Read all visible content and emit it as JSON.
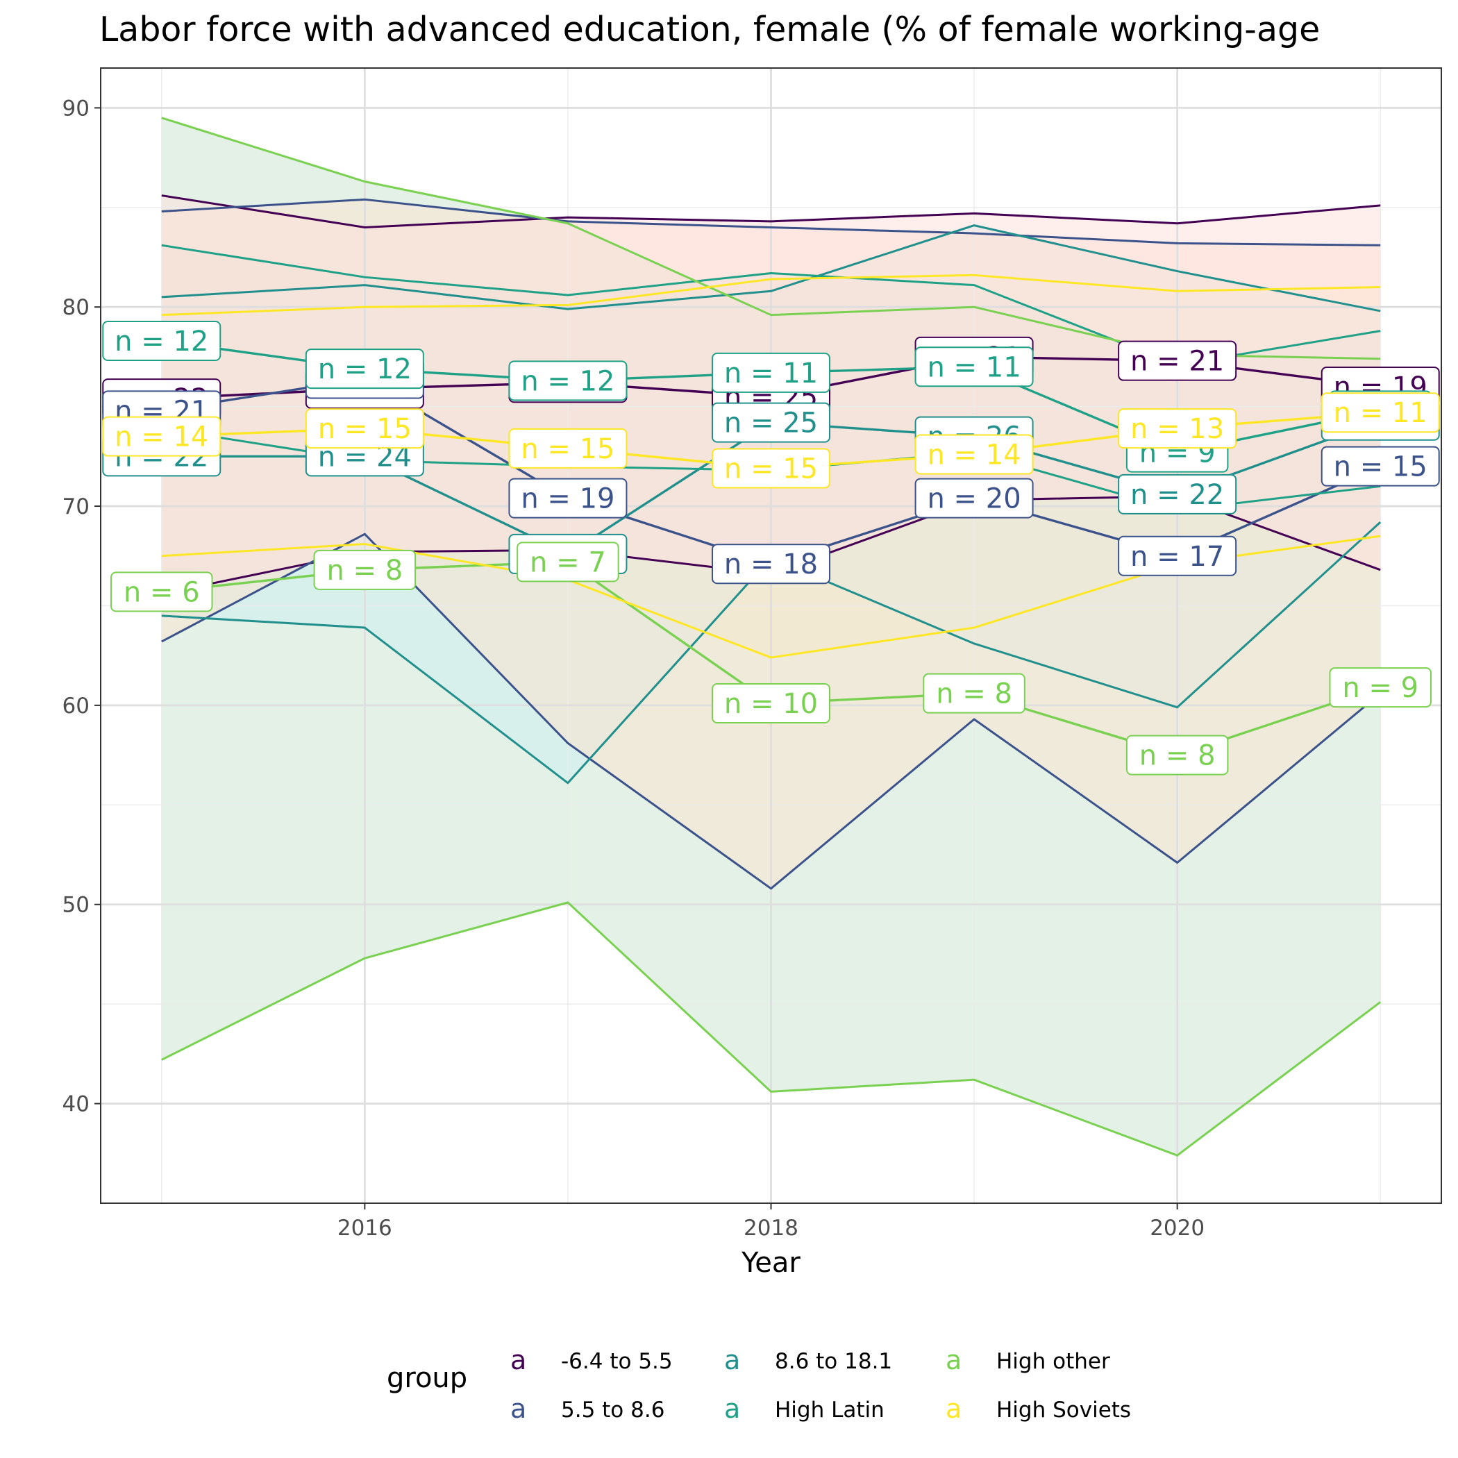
{
  "chart_data": {
    "type": "line",
    "title": "Labor force with advanced education, female (% of female working-age",
    "xlabel": "Year",
    "ylabel": "",
    "x": [
      2015,
      2016,
      2017,
      2018,
      2019,
      2020,
      2021
    ],
    "xlim": [
      2014.7,
      2021.3
    ],
    "ylim": [
      35,
      92
    ],
    "x_ticks": [
      2016,
      2018,
      2020
    ],
    "y_ticks": [
      40,
      50,
      60,
      70,
      80,
      90
    ],
    "grid": true,
    "legend": {
      "title": "group",
      "placement": "bottom",
      "key_glyph": "a",
      "entries": [
        "-6.4 to 5.5",
        "5.5 to 8.6",
        "8.6 to 18.1",
        "High Latin",
        "High other",
        "High Soviets"
      ]
    },
    "series": [
      {
        "name": "-6.4 to 5.5",
        "color": "#440154",
        "band_fill": "#fde0dd",
        "upper": [
          85.6,
          84.0,
          84.5,
          84.3,
          84.7,
          84.2,
          85.1
        ],
        "mean": [
          75.4,
          75.9,
          76.2,
          75.5,
          77.5,
          77.3,
          76.0
        ],
        "lower": [
          65.6,
          67.7,
          67.8,
          66.6,
          70.3,
          70.5,
          66.8
        ],
        "labels": [
          "n = 22",
          "n = 23",
          "n = 22",
          "n = 25",
          "n = 21",
          "n = 21",
          "n = 19"
        ]
      },
      {
        "name": "5.5 to 8.6",
        "color": "#3b528b",
        "band_fill": "#fbe3d0",
        "upper": [
          84.8,
          85.4,
          84.3,
          84.0,
          83.7,
          83.2,
          83.1
        ],
        "mean": [
          74.8,
          76.4,
          70.4,
          67.1,
          70.4,
          67.5,
          72.0
        ],
        "lower": [
          63.2,
          68.6,
          58.1,
          50.8,
          59.3,
          52.1,
          60.6
        ],
        "labels": [
          "n = 21",
          "n = 23",
          "n = 19",
          "n = 18",
          "n = 20",
          "n = 17",
          "n = 15"
        ]
      },
      {
        "name": "8.6 to 18.1",
        "color": "#21908d",
        "band_fill": "#cdeeee",
        "upper": [
          80.5,
          81.1,
          79.9,
          80.8,
          84.1,
          81.8,
          79.8
        ],
        "mean": [
          72.5,
          72.5,
          67.6,
          74.2,
          73.5,
          70.6,
          74.3
        ],
        "lower": [
          64.5,
          63.9,
          56.1,
          67.4,
          63.1,
          59.9,
          69.2
        ],
        "labels": [
          "n = 22",
          "n = 24",
          "n = 22",
          "n = 25",
          "n = 26",
          "n = 22",
          "n = 22"
        ]
      },
      {
        "name": "High Latin",
        "color": "#1fa187",
        "band_fill": "#cde6e0",
        "upper": [
          83.1,
          81.5,
          80.6,
          81.7,
          81.1,
          77.1,
          78.8
        ],
        "mean": [
          78.3,
          76.9,
          76.3,
          76.7,
          77.0,
          72.7,
          74.8
        ],
        "lower": [
          73.9,
          72.3,
          72.0,
          71.8,
          72.7,
          69.8,
          71.0
        ],
        "labels": [
          "n = 12",
          "n = 12",
          "n = 12",
          "n = 11",
          "n = 11",
          "n = 9",
          "n = 9"
        ]
      },
      {
        "name": "High other",
        "color": "#7ad151",
        "band_fill": "#d9ecd3",
        "upper": [
          89.5,
          86.3,
          84.2,
          79.6,
          80.0,
          77.6,
          77.4
        ],
        "mean": [
          65.7,
          66.8,
          67.2,
          60.1,
          60.6,
          57.5,
          60.9
        ],
        "lower": [
          42.2,
          47.3,
          50.1,
          40.6,
          41.2,
          37.4,
          45.1
        ],
        "labels": [
          "n = 6",
          "n = 8",
          "n = 7",
          "n = 10",
          "n = 8",
          "n = 8",
          "n = 9"
        ]
      },
      {
        "name": "High Soviets",
        "color": "#fde725",
        "band_fill": "#fff3c4",
        "upper": [
          79.6,
          80.0,
          80.1,
          81.4,
          81.6,
          80.8,
          81.0
        ],
        "mean": [
          73.5,
          73.9,
          72.9,
          71.9,
          72.6,
          73.9,
          74.7
        ],
        "lower": [
          67.5,
          68.1,
          66.3,
          62.4,
          63.9,
          67.1,
          68.5
        ],
        "labels": [
          "n = 14",
          "n = 15",
          "n = 15",
          "n = 15",
          "n = 14",
          "n = 13",
          "n = 11"
        ]
      }
    ]
  }
}
